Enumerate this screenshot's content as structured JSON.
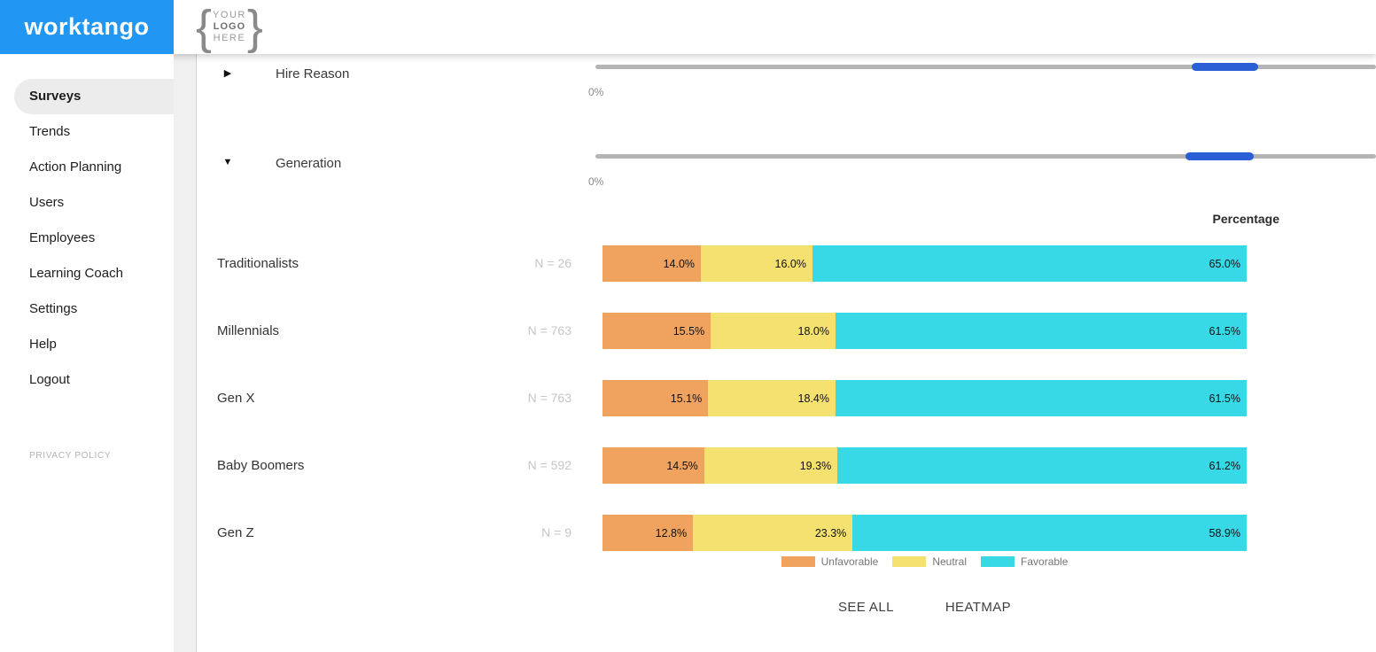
{
  "header": {
    "brand": "worktango",
    "logo_placeholder": {
      "brace_left": "{",
      "brace_right": "}",
      "lines": [
        "YOUR",
        "LOGO",
        "HERE"
      ]
    }
  },
  "sidebar": {
    "items": [
      {
        "label": "Surveys",
        "active": true
      },
      {
        "label": "Trends",
        "active": false
      },
      {
        "label": "Action Planning",
        "active": false
      },
      {
        "label": "Users",
        "active": false
      },
      {
        "label": "Employees",
        "active": false
      },
      {
        "label": "Learning Coach",
        "active": false
      },
      {
        "label": "Settings",
        "active": false
      },
      {
        "label": "Help",
        "active": false
      },
      {
        "label": "Logout",
        "active": false
      }
    ],
    "privacy_policy": "PRIVACY POLICY"
  },
  "filters": [
    {
      "name": "Hire Reason",
      "expanded": false,
      "scroll_value": "0%",
      "slider": {
        "thumb_left_pct": 76.4,
        "thumb_width_pct": 8.5
      }
    },
    {
      "name": "Generation",
      "expanded": true,
      "scroll_value": "0%",
      "slider": {
        "thumb_left_pct": 75.6,
        "thumb_width_pct": 8.7
      }
    }
  ],
  "chart_data": {
    "type": "bar",
    "stacked": true,
    "orientation": "horizontal",
    "column_header": "Percentage",
    "categories": [
      "Traditionalists",
      "Millennials",
      "Gen X",
      "Baby Boomers",
      "Gen Z"
    ],
    "sample_sizes": [
      "N = 26",
      "N = 763",
      "N = 763",
      "N = 592",
      "N = 9"
    ],
    "series": [
      {
        "name": "Unfavorable",
        "color": "#F0A35E",
        "values": [
          14.0,
          15.5,
          15.1,
          14.5,
          12.8
        ]
      },
      {
        "name": "Neutral",
        "color": "#F5E170",
        "values": [
          16.0,
          18.0,
          18.4,
          19.3,
          23.3
        ]
      },
      {
        "name": "Favorable",
        "color": "#36D9E5",
        "values": [
          65.0,
          61.5,
          61.5,
          61.2,
          58.9
        ]
      }
    ],
    "value_suffix": "%",
    "legend_position": "bottom"
  },
  "actions": {
    "see_all": "SEE ALL",
    "heatmap": "HEATMAP"
  },
  "colors": {
    "header_blue": "#2196F3",
    "slider_thumb": "#2A5FD6",
    "slider_track": "#B5B5B5"
  }
}
